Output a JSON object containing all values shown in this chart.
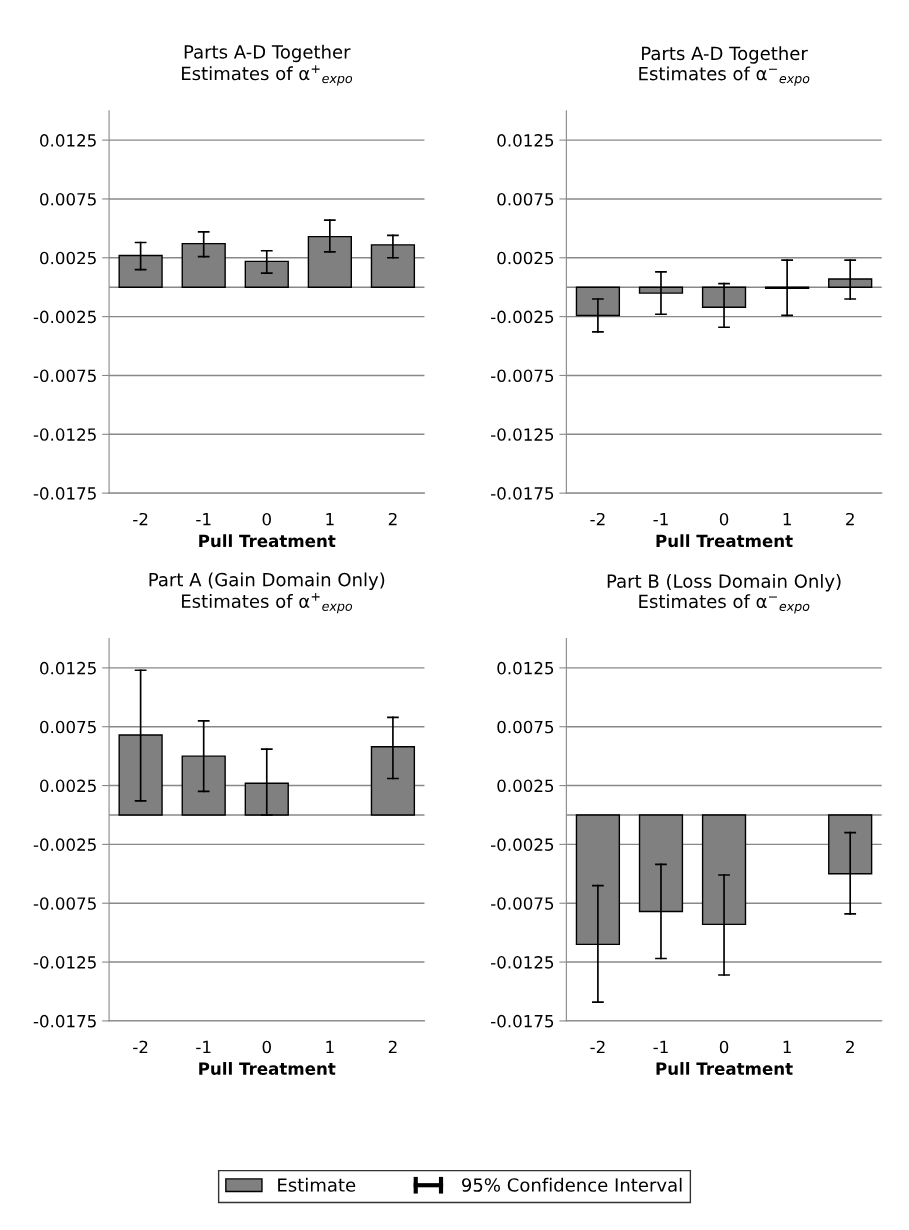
{
  "chart_data": [
    {
      "type": "bar",
      "title": "Parts A-D Together\nEstimates of α$^{+}$$_{expo}$",
      "xlabel": "Pull Treatment",
      "categories": [
        "-2",
        "-1",
        "0",
        "1",
        "2"
      ],
      "series": [
        {
          "color": "#808080",
          "values": [
            0.0027,
            0.0037,
            0.0022,
            0.0043,
            0.0036
          ],
          "errors": [
            [
              0.0015,
              0.0038
            ],
            [
              0.0026,
              0.0047
            ],
            [
              0.0012,
              0.0031
            ],
            [
              0.003,
              0.0057
            ],
            [
              0.0025,
              0.0044
            ]
          ]
        }
      ],
      "ylim": [
        -0.0175,
        0.015
      ],
      "yticks": [
        0.0125,
        0.0075,
        0.0025,
        -0.0025,
        -0.0075,
        -0.0125,
        -0.0175
      ],
      "grid": "y"
    },
    {
      "type": "bar",
      "title": "Parts A-D Together\nEstimates of α$^{−}$$_{expo}$",
      "xlabel": "Pull Treatment",
      "categories": [
        "-2",
        "-1",
        "0",
        "1",
        "2"
      ],
      "series": [
        {
          "color": "#808080",
          "values": [
            -0.0024,
            -0.0005,
            -0.0017,
            -0.0001,
            0.0007
          ],
          "errors": [
            [
              -0.0038,
              -0.001
            ],
            [
              -0.0023,
              0.0013
            ],
            [
              -0.0034,
              0.0003
            ],
            [
              -0.0024,
              0.0023
            ],
            [
              -0.001,
              0.0023
            ]
          ]
        }
      ],
      "ylim": [
        -0.0175,
        0.015
      ],
      "yticks": [
        0.0125,
        0.0075,
        0.0025,
        -0.0025,
        -0.0075,
        -0.0125,
        -0.0175
      ],
      "grid": "y"
    },
    {
      "type": "bar",
      "title": "Part A (Gain Domain Only)\nEstimates of α$^{+}$$_{expo}$",
      "xlabel": "Pull Treatment",
      "categories": [
        "-2",
        "-1",
        "0",
        "1",
        "2"
      ],
      "series": [
        {
          "color": "#808080",
          "values": [
            0.0068,
            0.005,
            0.0027,
            null,
            0.0058
          ],
          "errors": [
            [
              0.0012,
              0.0123
            ],
            [
              0.002,
              0.008
            ],
            [
              0.0,
              0.0056
            ],
            null,
            [
              0.0031,
              0.0083
            ]
          ]
        }
      ],
      "ylim": [
        -0.0175,
        0.015
      ],
      "yticks": [
        0.0125,
        0.0075,
        0.0025,
        -0.0025,
        -0.0075,
        -0.0125,
        -0.0175
      ],
      "grid": "y"
    },
    {
      "type": "bar",
      "title": "Part B (Loss Domain Only)\nEstimates of α$^{−}$$_{expo}$",
      "xlabel": "Pull Treatment",
      "categories": [
        "-2",
        "-1",
        "0",
        "1",
        "2"
      ],
      "series": [
        {
          "name": "Estimate",
          "color": "#808080",
          "values": [
            -0.011,
            -0.0082,
            -0.0093,
            null,
            -0.005
          ],
          "errors": [
            [
              -0.0159,
              -0.006
            ],
            [
              -0.0122,
              -0.0042
            ],
            [
              -0.0136,
              -0.0051
            ],
            null,
            [
              -0.0084,
              -0.0015
            ]
          ]
        }
      ],
      "ylim": [
        -0.0175,
        0.015
      ],
      "yticks": [
        0.0125,
        0.0075,
        0.0025,
        -0.0025,
        -0.0075,
        -0.0125,
        -0.0175
      ],
      "grid": "y",
      "legend": "bottom",
      "annotations": [
        "95% Confidence Interval"
      ]
    }
  ]
}
